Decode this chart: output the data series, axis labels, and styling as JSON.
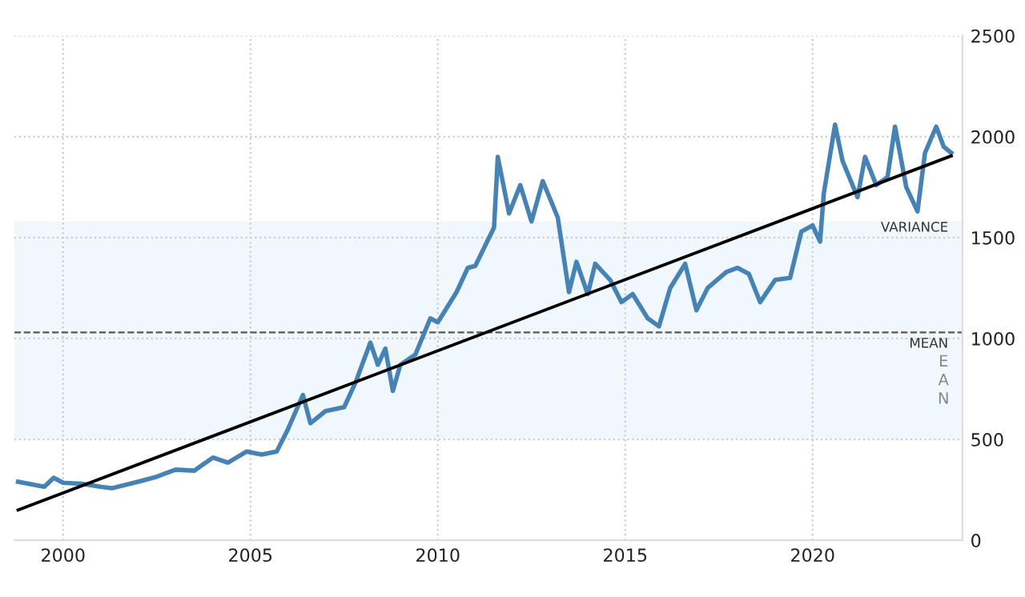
{
  "chart_data": {
    "type": "line",
    "x": [
      1998.8,
      1999.5,
      1999.75,
      2000.0,
      2000.5,
      2001.0,
      2001.3,
      2002.0,
      2002.5,
      2003.0,
      2003.5,
      2004.0,
      2004.4,
      2004.9,
      2005.3,
      2005.7,
      2006.0,
      2006.4,
      2006.6,
      2007.0,
      2007.5,
      2007.8,
      2008.2,
      2008.4,
      2008.6,
      2008.8,
      2009.0,
      2009.4,
      2009.8,
      2010.0,
      2010.5,
      2010.8,
      2011.0,
      2011.5,
      2011.6,
      2011.9,
      2012.2,
      2012.5,
      2012.8,
      2013.2,
      2013.5,
      2013.7,
      2014.0,
      2014.2,
      2014.6,
      2014.9,
      2015.2,
      2015.6,
      2015.9,
      2016.2,
      2016.6,
      2016.9,
      2017.2,
      2017.7,
      2018.0,
      2018.3,
      2018.6,
      2019.0,
      2019.4,
      2019.7,
      2020.0,
      2020.2,
      2020.3,
      2020.6,
      2020.8,
      2021.2,
      2021.4,
      2021.7,
      2022.0,
      2022.2,
      2022.5,
      2022.8,
      2023.0,
      2023.3,
      2023.5,
      2023.7
    ],
    "series": [
      {
        "color": "#4682b4",
        "values": [
          290,
          265,
          310,
          285,
          280,
          265,
          258,
          290,
          315,
          350,
          345,
          410,
          385,
          440,
          425,
          440,
          550,
          720,
          580,
          640,
          660,
          780,
          980,
          870,
          950,
          740,
          870,
          920,
          1100,
          1080,
          1230,
          1350,
          1360,
          1550,
          1900,
          1620,
          1760,
          1580,
          1780,
          1600,
          1230,
          1380,
          1220,
          1370,
          1290,
          1180,
          1220,
          1100,
          1060,
          1250,
          1370,
          1140,
          1250,
          1330,
          1350,
          1320,
          1180,
          1290,
          1300,
          1530,
          1560,
          1480,
          1720,
          2060,
          1880,
          1700,
          1900,
          1760,
          1800,
          2050,
          1750,
          1630,
          1920,
          2050,
          1950,
          1920
        ]
      },
      {
        "type": "line",
        "color": "#000000",
        "x": [
          1998.8,
          2023.7
        ],
        "values": [
          150,
          1905
        ]
      }
    ],
    "xlim": [
      1998.7,
      2024.0
    ],
    "xticks": [
      2000,
      2005,
      2010,
      2015,
      2020
    ],
    "ylim": [
      0,
      2500
    ],
    "yticks": [
      0,
      500,
      1000,
      1500,
      2000,
      2500
    ],
    "grid": true,
    "legend": false,
    "ref_lines": [
      {
        "axis": "y",
        "value": 1030,
        "label": "MEAN",
        "color": "#555555",
        "line_style": "dashed"
      }
    ],
    "bands": [
      {
        "axis": "y",
        "from": 500,
        "to": 1580,
        "label": "VARIANCE",
        "color": "#f0f8fe"
      }
    ],
    "annotations": [
      "EAN"
    ]
  }
}
